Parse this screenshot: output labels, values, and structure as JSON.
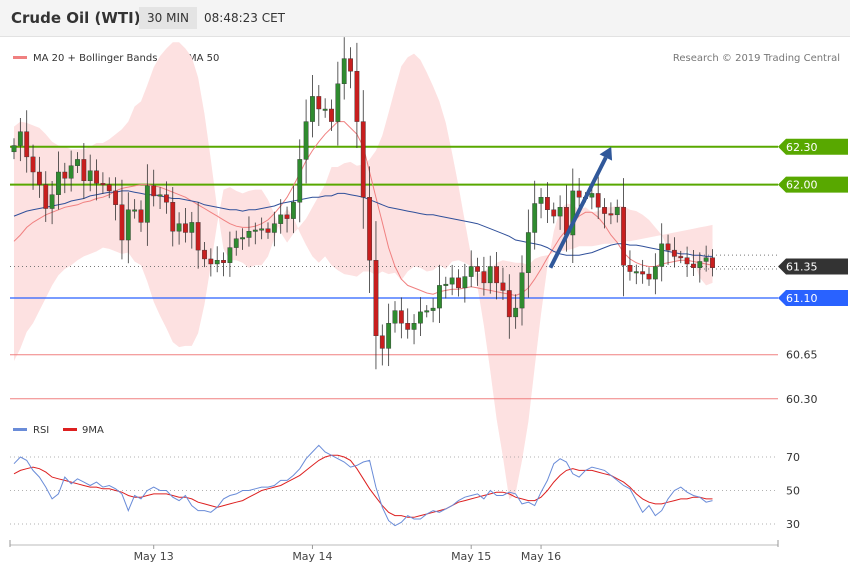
{
  "header": {
    "instrument": "Crude Oil (WTI)",
    "timeframe": "30 MIN",
    "time": "08:48:23 CET"
  },
  "legend": {
    "ma20_bollinger": "MA 20 + Bollinger Bands",
    "ma50": "MA 50",
    "copyright": "Research © 2019 Trading Central"
  },
  "indicator_legend": {
    "rsi": "RSI",
    "ma9": "9MA"
  },
  "colors": {
    "bull": "#2f8b2f",
    "bear": "#c81e1e",
    "bollinger_fill": "#fde1e1",
    "ma20": "#f08080",
    "ma50": "#30509a",
    "resistance": "#58a800",
    "support_blue": "#2962ff",
    "support_red": "#f08080",
    "current_price": "#333333",
    "arrow": "#30589a",
    "rsi": "#6a8cd8",
    "rsi_ma": "#dd2020"
  },
  "chart_data": {
    "type": "candlestick",
    "x_labels": [
      "May 13",
      "May 14",
      "May 15",
      "May 16"
    ],
    "x_label_index": [
      22,
      47,
      72,
      83
    ],
    "price_levels": [
      {
        "label": "62.30",
        "value": 62.3,
        "style": "resistance"
      },
      {
        "label": "62.00",
        "value": 62.0,
        "style": "resistance"
      },
      {
        "label": "61.35",
        "value": 61.35,
        "style": "current"
      },
      {
        "label": "61.10",
        "value": 61.1,
        "style": "support_blue"
      },
      {
        "label": "60.65",
        "value": 60.65,
        "style": "support_red"
      },
      {
        "label": "60.30",
        "value": 60.3,
        "style": "support_red"
      }
    ],
    "extra_dotted_levels": [
      61.44,
      61.33
    ],
    "projection": {
      "from_index": 84,
      "from": 61.34,
      "to_index": 92,
      "to": 62.3
    },
    "close": [
      62.31,
      62.42,
      62.22,
      62.1,
      62.0,
      61.81,
      61.92,
      62.1,
      62.05,
      62.15,
      62.2,
      62.03,
      62.11,
      62.01,
      62.0,
      61.95,
      61.84,
      61.56,
      61.8,
      61.8,
      61.7,
      61.99,
      61.91,
      61.92,
      61.86,
      61.63,
      61.69,
      61.62,
      61.7,
      61.48,
      61.41,
      61.37,
      61.4,
      61.38,
      61.5,
      61.57,
      61.58,
      61.63,
      61.64,
      61.65,
      61.62,
      61.69,
      61.76,
      61.73,
      61.86,
      62.2,
      62.5,
      62.7,
      62.6,
      62.6,
      62.5,
      62.8,
      63.0,
      62.9,
      62.5,
      61.9,
      61.4,
      60.8,
      60.7,
      60.9,
      61.0,
      60.9,
      60.85,
      60.9,
      60.99,
      61.0,
      61.02,
      61.2,
      61.21,
      61.26,
      61.18,
      61.27,
      61.35,
      61.31,
      61.22,
      61.35,
      61.22,
      61.16,
      60.95,
      61.02,
      61.3,
      61.62,
      61.85,
      61.9,
      61.8,
      61.75,
      61.82,
      61.6,
      61.95,
      61.9,
      61.9,
      61.93,
      61.82,
      61.77,
      61.76,
      61.82,
      61.36,
      61.31,
      61.31,
      61.29,
      61.25,
      61.35,
      61.53,
      61.48,
      61.43,
      61.42,
      61.37,
      61.34,
      61.39,
      61.42,
      61.34
    ],
    "bollinger_upper": [
      62.46,
      62.5,
      62.49,
      62.47,
      62.45,
      62.4,
      62.34,
      62.31,
      62.3,
      62.28,
      62.28,
      62.28,
      62.3,
      62.33,
      62.33,
      62.36,
      62.4,
      62.44,
      62.5,
      62.62,
      62.66,
      62.79,
      62.93,
      63.02,
      63.08,
      63.13,
      63.13,
      63.08,
      63.01,
      62.85,
      62.56,
      62.2,
      61.81,
      61.49,
      61.4,
      61.4,
      61.38,
      61.34,
      61.36,
      61.36,
      61.43,
      61.57,
      61.73,
      61.81,
      61.74,
      61.62,
      61.52,
      61.43,
      61.38,
      61.43,
      61.36,
      61.32,
      61.29,
      61.28,
      61.27,
      61.31,
      61.31,
      61.28,
      61.31,
      61.29,
      61.3,
      61.24,
      61.31,
      61.35,
      61.34,
      61.31,
      61.32,
      61.36,
      61.33,
      61.39,
      61.4,
      61.38,
      61.35,
      61.29,
      61.32,
      61.33,
      61.38,
      61.4,
      61.39,
      61.38,
      61.38,
      61.36,
      61.41,
      61.43,
      61.44,
      61.46,
      61.47,
      61.48,
      61.49,
      61.51,
      61.51,
      61.51,
      61.52,
      61.53,
      61.53,
      61.54,
      61.55,
      61.55,
      61.56,
      61.57,
      61.58,
      61.59,
      61.6,
      61.61,
      61.62,
      61.63,
      61.64,
      61.65,
      61.66,
      61.67,
      61.68
    ],
    "ma20": [
      61.55,
      61.6,
      61.66,
      61.7,
      61.73,
      61.76,
      61.78,
      61.8,
      61.82,
      61.83,
      61.84,
      61.86,
      61.87,
      61.89,
      61.9,
      61.92,
      61.95,
      61.97,
      61.98,
      61.99,
      62.0,
      62.0,
      61.99,
      61.98,
      61.96,
      61.94,
      61.92,
      61.9,
      61.87,
      61.84,
      61.81,
      61.78,
      61.75,
      61.72,
      61.69,
      61.67,
      61.66,
      61.66,
      61.67,
      61.69,
      61.72,
      61.77,
      61.83,
      61.9,
      61.99,
      62.09,
      62.19,
      62.27,
      62.34,
      62.4,
      62.45,
      62.5,
      62.5,
      62.45,
      62.4,
      62.3,
      62.1,
      61.9,
      61.7,
      61.5,
      61.35,
      61.25,
      61.2,
      61.18,
      61.16,
      61.14,
      61.13,
      61.15,
      61.16,
      61.17,
      61.17,
      61.18,
      61.19,
      61.18,
      61.17,
      61.16,
      61.15,
      61.14,
      61.13,
      61.12,
      61.14,
      61.18,
      61.25,
      61.33,
      61.42,
      61.5,
      61.58,
      61.64,
      61.7,
      61.75,
      61.78,
      61.78,
      61.74,
      61.68,
      61.6,
      61.54,
      61.46,
      61.41,
      61.38,
      61.36,
      61.35,
      61.35,
      61.37,
      61.38,
      61.39,
      61.4,
      61.4,
      61.39,
      61.38,
      61.37,
      61.36
    ],
    "bollinger_lower": [
      60.6,
      60.7,
      60.83,
      60.9,
      61.0,
      61.1,
      61.2,
      61.28,
      61.33,
      61.36,
      61.4,
      61.43,
      61.45,
      61.47,
      61.5,
      61.49,
      61.47,
      61.45,
      61.46,
      61.39,
      61.36,
      61.23,
      61.07,
      60.96,
      60.86,
      60.75,
      60.71,
      60.72,
      60.72,
      60.82,
      61.05,
      61.36,
      61.69,
      61.96,
      61.98,
      61.95,
      61.93,
      61.95,
      61.96,
      61.96,
      61.88,
      61.77,
      61.62,
      61.54,
      61.61,
      61.67,
      61.73,
      61.82,
      61.91,
      62.0,
      62.14,
      62.14,
      62.17,
      62.18,
      62.15,
      62.16,
      62.2,
      62.27,
      62.39,
      62.57,
      62.76,
      62.94,
      63.01,
      63.04,
      62.99,
      62.89,
      62.78,
      62.66,
      62.49,
      62.25,
      61.99,
      61.71,
      61.43,
      61.19,
      60.88,
      60.52,
      60.14,
      59.84,
      59.5,
      59.55,
      59.81,
      60.12,
      60.55,
      60.97,
      61.35,
      61.63,
      61.8,
      61.85,
      61.84,
      61.8,
      61.82,
      61.78,
      61.79,
      61.82,
      61.82,
      61.83,
      61.83,
      61.8,
      61.79,
      61.76,
      61.72,
      61.66,
      61.6,
      61.49,
      61.39,
      61.4,
      61.5,
      61.4,
      61.26,
      61.2,
      61.22
    ],
    "ma50": [
      61.75,
      61.77,
      61.79,
      61.8,
      61.81,
      61.82,
      61.83,
      61.84,
      61.85,
      61.87,
      61.88,
      61.89,
      61.91,
      61.92,
      61.93,
      61.94,
      61.94,
      61.95,
      61.95,
      61.94,
      61.93,
      61.92,
      61.92,
      61.91,
      61.9,
      61.89,
      61.89,
      61.88,
      61.87,
      61.86,
      61.84,
      61.83,
      61.82,
      61.81,
      61.8,
      61.8,
      61.79,
      61.8,
      61.8,
      61.81,
      61.82,
      61.83,
      61.85,
      61.86,
      61.87,
      61.88,
      61.89,
      61.9,
      61.9,
      61.91,
      61.91,
      61.93,
      61.93,
      61.92,
      61.91,
      61.9,
      61.88,
      61.86,
      61.84,
      61.82,
      61.81,
      61.8,
      61.79,
      61.78,
      61.77,
      61.76,
      61.76,
      61.75,
      61.74,
      61.73,
      61.72,
      61.71,
      61.7,
      61.69,
      61.67,
      61.65,
      61.63,
      61.61,
      61.59,
      61.56,
      61.55,
      61.54,
      61.53,
      61.52,
      61.5,
      61.47,
      61.45,
      61.44,
      61.44,
      61.44,
      61.45,
      61.46,
      61.48,
      61.5,
      61.52,
      61.53,
      61.53,
      61.52,
      61.52,
      61.51,
      61.5,
      61.49,
      61.48,
      61.47,
      61.46,
      61.45,
      61.45,
      61.44,
      61.44,
      61.43,
      61.43
    ],
    "rsi": {
      "yticks": [
        30,
        50,
        70
      ],
      "rsi_values": [
        66,
        70,
        68,
        62,
        58,
        52,
        45,
        48,
        58,
        54,
        57,
        55,
        53,
        55,
        52,
        53,
        51,
        48,
        38,
        47,
        45,
        50,
        52,
        50,
        50,
        46,
        44,
        47,
        41,
        38,
        38,
        37,
        40,
        45,
        47,
        48,
        50,
        50,
        51,
        52,
        52,
        53,
        56,
        56,
        59,
        63,
        69,
        73,
        77,
        73,
        71,
        69,
        67,
        64,
        65,
        67,
        68,
        52,
        40,
        32,
        29,
        31,
        35,
        33,
        33,
        36,
        38,
        37,
        39,
        41,
        44,
        46,
        47,
        48,
        45,
        50,
        47,
        47,
        49,
        48,
        42,
        43,
        41,
        49,
        56,
        66,
        69,
        67,
        60,
        58,
        62,
        64,
        63,
        62,
        59,
        56,
        53,
        51,
        44,
        37,
        41,
        35,
        38,
        45,
        50,
        52,
        49,
        47,
        46,
        43,
        44
      ],
      "ma9_values": [
        60,
        62,
        63,
        64,
        63,
        61,
        58,
        57,
        56,
        55,
        54,
        53,
        52,
        52,
        51,
        51,
        50,
        49,
        47,
        46,
        46,
        47,
        48,
        48,
        48,
        47,
        46,
        46,
        45,
        43,
        42,
        41,
        40,
        41,
        42,
        43,
        44,
        46,
        48,
        50,
        51,
        52,
        53,
        55,
        57,
        59,
        62,
        65,
        68,
        70,
        71,
        71,
        70,
        68,
        63,
        57,
        51,
        46,
        41,
        37,
        35,
        35,
        34,
        34,
        35,
        36,
        37,
        38,
        39,
        41,
        43,
        44,
        45,
        46,
        47,
        48,
        49,
        49,
        48,
        46,
        45,
        44,
        44,
        46,
        50,
        55,
        59,
        62,
        63,
        62,
        62,
        62,
        61,
        60,
        59,
        57,
        55,
        52,
        48,
        45,
        43,
        42,
        42,
        43,
        44,
        45,
        45,
        46,
        46,
        45,
        45
      ]
    }
  }
}
